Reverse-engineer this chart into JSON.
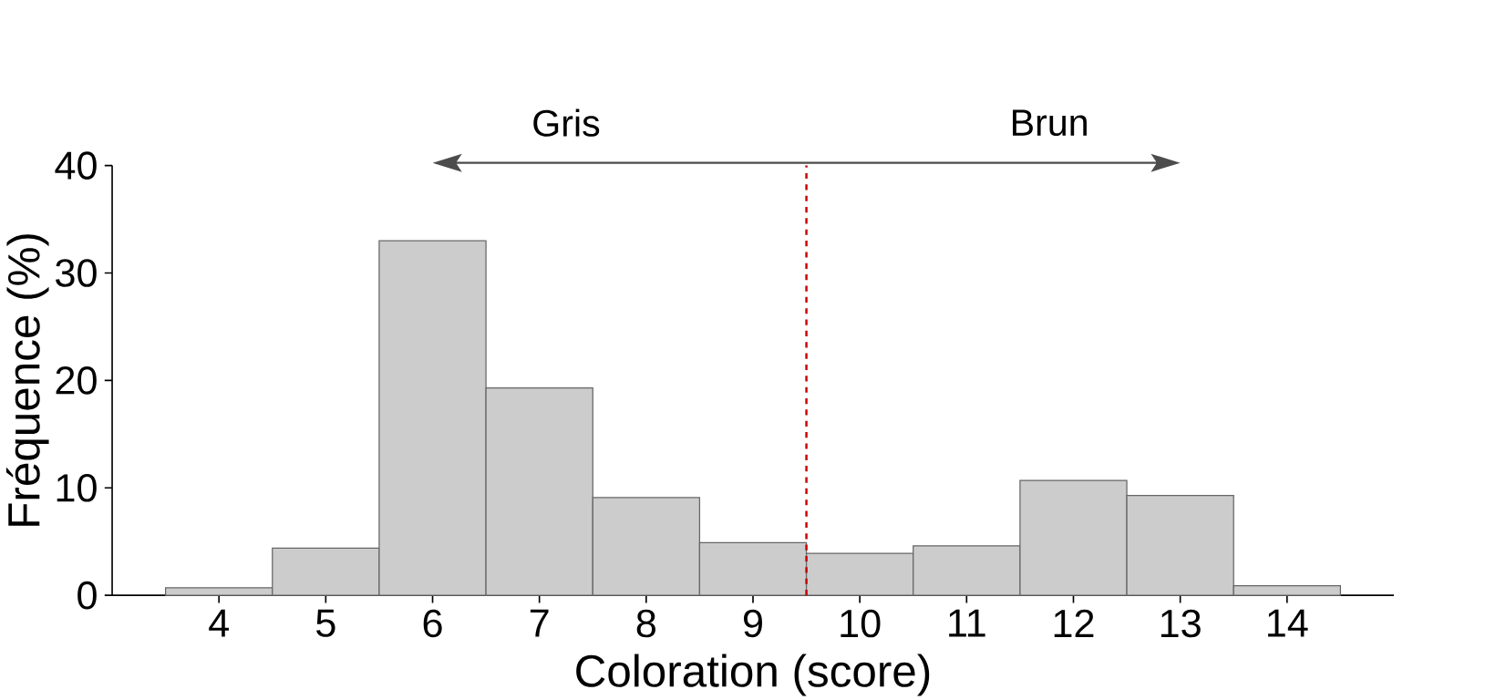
{
  "chart_data": {
    "type": "histogram",
    "xlabel": "Coloration (score)",
    "ylabel": "Fréquence (%)",
    "bins": [
      3.5,
      4.5,
      5.5,
      6.5,
      7.5,
      8.5,
      9.5,
      10.5,
      11.5,
      12.5,
      13.5,
      14.5
    ],
    "values": [
      0.7,
      4.4,
      33,
      19.3,
      9.1,
      4.9,
      3.9,
      4.6,
      10.7,
      9.3,
      0.9
    ],
    "color": "#cccccc",
    "xlim": [
      3,
      15
    ],
    "xticks": [
      4,
      5,
      6,
      7,
      8,
      9,
      10,
      11,
      12,
      13,
      14
    ],
    "ylim": [
      0,
      40
    ],
    "yticks": [
      0,
      10,
      20,
      30,
      40
    ],
    "ref_lines": [
      {
        "axis": "x",
        "value": 9.5,
        "color": "#cc0000",
        "line_style": "dashed"
      }
    ],
    "annotations": [
      "Gris",
      "Brun"
    ],
    "grid": false
  }
}
